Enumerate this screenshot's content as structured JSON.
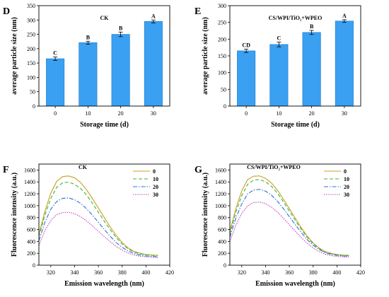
{
  "colors": {
    "bar": "#3aa0f2",
    "bar_edge": "#1a78c8",
    "error": "#000000"
  },
  "chart_data": [
    {
      "type": "bar",
      "letter": "D",
      "title": "CK",
      "xlabel": "Storage time (d)",
      "ylabel": "average particle size (nm)",
      "categories": [
        "0",
        "10",
        "20",
        "30"
      ],
      "values": [
        165,
        221,
        250,
        295
      ],
      "errors": [
        6,
        5,
        8,
        5
      ],
      "labels": [
        "C",
        "B",
        "B",
        "A"
      ],
      "ylim": [
        0,
        350
      ],
      "yticks": [
        0,
        50,
        100,
        150,
        200,
        250,
        300,
        350
      ]
    },
    {
      "type": "bar",
      "letter": "E",
      "title": "CS/WPI/TiO₂+WPEO",
      "xlabel": "Storage time (d)",
      "ylabel": "average particle size (nm)",
      "categories": [
        "0",
        "10",
        "20",
        "30"
      ],
      "values": [
        165,
        184,
        220,
        254
      ],
      "errors": [
        5,
        7,
        6,
        4
      ],
      "labels": [
        "CD",
        "C",
        "B",
        "A"
      ],
      "ylim": [
        0,
        300
      ],
      "yticks": [
        0,
        50,
        100,
        150,
        200,
        250,
        300
      ]
    },
    {
      "type": "line",
      "letter": "F",
      "title": "CK",
      "xlabel": "Emission wavelength (nm)",
      "ylabel": "Fluorescence intensity (a.u.)",
      "xlim": [
        310,
        420
      ],
      "xticks": [
        320,
        340,
        360,
        380,
        400,
        420
      ],
      "ylim": [
        0,
        1700
      ],
      "yticks": [
        0,
        200,
        400,
        600,
        800,
        1000,
        1200,
        1400,
        1600
      ],
      "legend_position": "top-right",
      "series": [
        {
          "name": "0",
          "color": "#c8a020",
          "dash": "",
          "x": [
            310,
            315,
            320,
            325,
            330,
            335,
            340,
            345,
            350,
            355,
            360,
            365,
            370,
            375,
            380,
            385,
            390,
            395,
            400,
            405,
            410
          ],
          "y": [
            520,
            900,
            1210,
            1410,
            1490,
            1500,
            1470,
            1390,
            1270,
            1120,
            960,
            800,
            640,
            500,
            380,
            290,
            230,
            200,
            180,
            170,
            165
          ]
        },
        {
          "name": "10",
          "color": "#40b040",
          "dash": "5,3",
          "x": [
            310,
            315,
            320,
            325,
            330,
            335,
            340,
            345,
            350,
            355,
            360,
            365,
            370,
            375,
            380,
            385,
            390,
            395,
            400,
            405,
            410
          ],
          "y": [
            480,
            840,
            1120,
            1310,
            1385,
            1395,
            1360,
            1290,
            1180,
            1040,
            890,
            740,
            595,
            465,
            355,
            275,
            220,
            190,
            175,
            165,
            160
          ]
        },
        {
          "name": "20",
          "color": "#3070d0",
          "dash": "6,2,1.5,2",
          "x": [
            310,
            315,
            320,
            325,
            330,
            335,
            340,
            345,
            350,
            355,
            360,
            365,
            370,
            375,
            380,
            385,
            390,
            395,
            400,
            405,
            410
          ],
          "y": [
            410,
            720,
            940,
            1070,
            1125,
            1130,
            1100,
            1040,
            950,
            840,
            720,
            600,
            485,
            380,
            300,
            240,
            195,
            170,
            155,
            148,
            142
          ]
        },
        {
          "name": "30",
          "color": "#c040c0",
          "dash": "1.5,1.5",
          "x": [
            310,
            315,
            320,
            325,
            330,
            335,
            340,
            345,
            350,
            355,
            360,
            365,
            370,
            375,
            380,
            385,
            390,
            395,
            400,
            405,
            410
          ],
          "y": [
            330,
            580,
            750,
            850,
            885,
            890,
            865,
            815,
            745,
            660,
            570,
            480,
            395,
            315,
            255,
            205,
            170,
            150,
            140,
            135,
            130
          ]
        }
      ]
    },
    {
      "type": "line",
      "letter": "G",
      "title": "CS/WPI/TiO₂+WPEO",
      "xlabel": "Emission wavelength (nm)",
      "ylabel": "Fluorescence intensity (a.u.)",
      "xlim": [
        310,
        420
      ],
      "xticks": [
        320,
        340,
        360,
        380,
        400,
        420
      ],
      "ylim": [
        0,
        1700
      ],
      "yticks": [
        0,
        200,
        400,
        600,
        800,
        1000,
        1200,
        1400,
        1600
      ],
      "legend_position": "top-right",
      "series": [
        {
          "name": "0",
          "color": "#c8a020",
          "dash": "",
          "x": [
            310,
            315,
            320,
            325,
            330,
            335,
            340,
            345,
            350,
            355,
            360,
            365,
            370,
            375,
            380,
            385,
            390,
            395,
            400,
            405,
            410
          ],
          "y": [
            560,
            950,
            1250,
            1440,
            1495,
            1500,
            1460,
            1380,
            1260,
            1110,
            950,
            790,
            630,
            490,
            375,
            290,
            230,
            200,
            180,
            170,
            165
          ]
        },
        {
          "name": "10",
          "color": "#40b040",
          "dash": "5,3",
          "x": [
            310,
            315,
            320,
            325,
            330,
            335,
            340,
            345,
            350,
            355,
            360,
            365,
            370,
            375,
            380,
            385,
            390,
            395,
            400,
            405,
            410
          ],
          "y": [
            520,
            890,
            1170,
            1360,
            1430,
            1440,
            1400,
            1325,
            1210,
            1065,
            910,
            755,
            605,
            470,
            360,
            280,
            220,
            190,
            175,
            165,
            160
          ]
        },
        {
          "name": "20",
          "color": "#3070d0",
          "dash": "6,2,1.5,2",
          "x": [
            310,
            315,
            320,
            325,
            330,
            335,
            340,
            345,
            350,
            355,
            360,
            365,
            370,
            375,
            380,
            385,
            390,
            395,
            400,
            405,
            410
          ],
          "y": [
            470,
            790,
            1030,
            1200,
            1265,
            1275,
            1245,
            1175,
            1075,
            950,
            815,
            680,
            550,
            430,
            335,
            265,
            210,
            180,
            165,
            155,
            150
          ]
        },
        {
          "name": "30",
          "color": "#c040c0",
          "dash": "1.5,1.5",
          "x": [
            310,
            315,
            320,
            325,
            330,
            335,
            340,
            345,
            350,
            355,
            360,
            365,
            370,
            375,
            380,
            385,
            390,
            395,
            400,
            405,
            410
          ],
          "y": [
            400,
            670,
            870,
            1000,
            1055,
            1060,
            1035,
            975,
            890,
            790,
            680,
            570,
            465,
            370,
            290,
            230,
            185,
            160,
            148,
            140,
            135
          ]
        }
      ]
    }
  ]
}
